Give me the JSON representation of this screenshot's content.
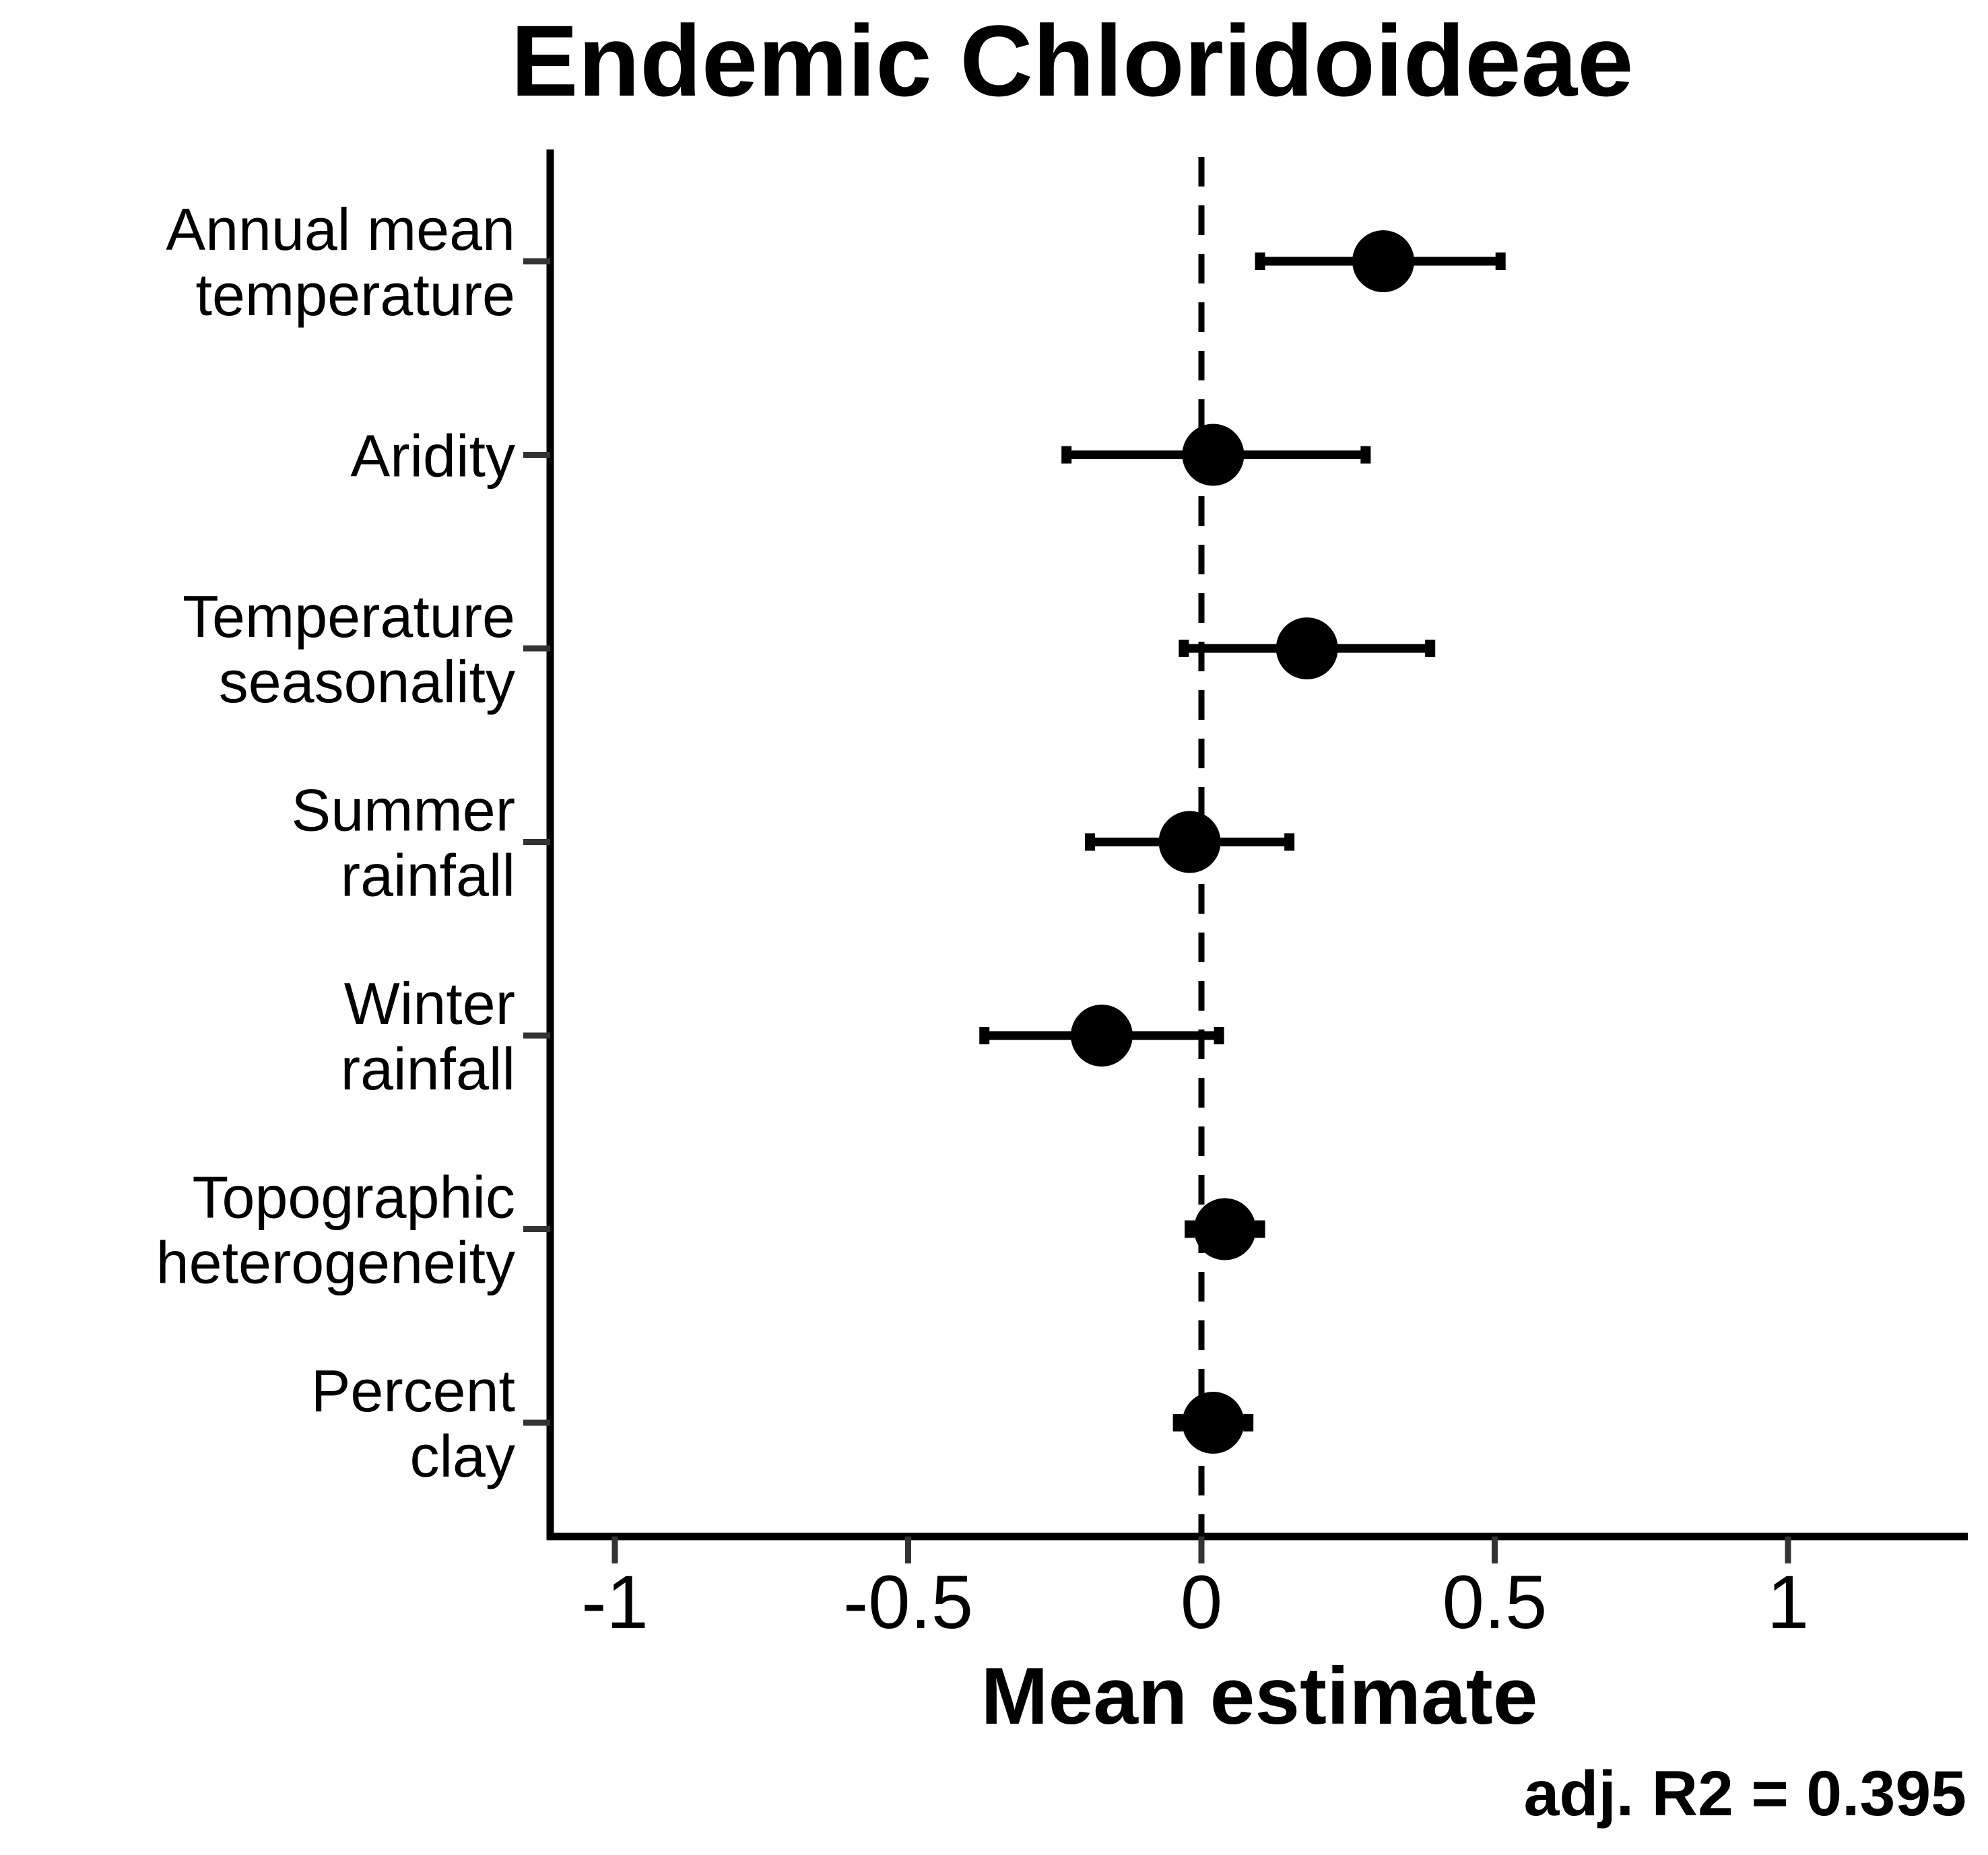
{
  "chart_data": {
    "type": "forest",
    "title": "Endemic Chloridoideae",
    "xlabel": "Mean estimate",
    "xlim": [
      -1.11,
      1.31
    ],
    "xticks": [
      -1,
      -0.5,
      0,
      0.5,
      1
    ],
    "xtick_labels": [
      "-1",
      "-0.5",
      "0",
      "0.5",
      "1"
    ],
    "reference_line": 0,
    "annotation": "adj. R2 = 0.395",
    "colors": {
      "marks": "#000000",
      "axis": "#000000",
      "ticks": "#333333"
    },
    "categories": [
      {
        "lines": [
          "Annual mean",
          "temperature"
        ],
        "estimate": 0.31,
        "lower": 0.1,
        "upper": 0.51
      },
      {
        "lines": [
          "Aridity"
        ],
        "estimate": 0.02,
        "lower": -0.23,
        "upper": 0.28
      },
      {
        "lines": [
          "Temperature",
          "seasonality"
        ],
        "estimate": 0.18,
        "lower": -0.03,
        "upper": 0.39
      },
      {
        "lines": [
          "Summer",
          "rainfall"
        ],
        "estimate": -0.02,
        "lower": -0.19,
        "upper": 0.15
      },
      {
        "lines": [
          "Winter",
          "rainfall"
        ],
        "estimate": -0.17,
        "lower": -0.37,
        "upper": 0.03
      },
      {
        "lines": [
          "Topographic",
          "heterogeneity"
        ],
        "estimate": 0.04,
        "lower": -0.02,
        "upper": 0.1
      },
      {
        "lines": [
          "Percent",
          "clay"
        ],
        "estimate": 0.02,
        "lower": -0.04,
        "upper": 0.08
      }
    ]
  }
}
